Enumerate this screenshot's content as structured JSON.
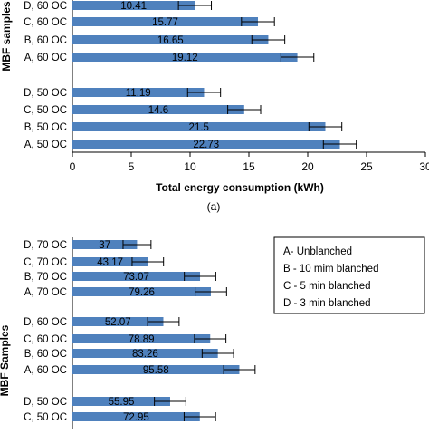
{
  "chart_data": [
    {
      "type": "bar",
      "orientation": "horizontal",
      "ylabel": "MBF samples",
      "xlabel": "Total energy consumption (kWh)",
      "caption": "(a)",
      "xlim": [
        0,
        30
      ],
      "xticks": [
        "0",
        "5",
        "10",
        "15",
        "20",
        "25",
        "30"
      ],
      "categories": [
        "D, 60 OC",
        "C, 60 OC",
        "B, 60 OC",
        "A, 60 OC",
        "D, 50 OC",
        "C, 50 OC",
        "B, 50 OC",
        "A, 50 OC"
      ],
      "values": [
        10.41,
        15.77,
        16.65,
        19.12,
        11.19,
        14.6,
        21.5,
        22.73
      ],
      "labels": [
        "10.41",
        "15.77",
        "16.65",
        "19.12",
        "11.19",
        "14.6",
        "21.5",
        "22.73"
      ],
      "errors": [
        1.4,
        1.4,
        1.4,
        1.4,
        1.4,
        1.4,
        1.4,
        1.4
      ],
      "grid": false,
      "bar_color": "#4f81bd"
    },
    {
      "type": "bar",
      "orientation": "horizontal",
      "ylabel": "MBF Samples",
      "xlim": [
        0,
        200
      ],
      "categories": [
        "D, 70 OC",
        "C, 70 OC",
        "B, 70 OC",
        "A, 70 OC",
        "D, 60 OC",
        "C, 60 OC",
        "B, 60 OC",
        "A, 60 OC",
        "D, 50 OC",
        "C, 50 OC"
      ],
      "values": [
        37,
        43.17,
        73.07,
        79.26,
        52.07,
        78.89,
        83.26,
        95.58,
        55.95,
        72.95
      ],
      "labels": [
        "37",
        "43.17",
        "73.07",
        "79.26",
        "52.07",
        "78.89",
        "83.26",
        "95.58",
        "55.95",
        "72.95"
      ],
      "errors": [
        8,
        9,
        9,
        9,
        9,
        9,
        9,
        9,
        9,
        9
      ],
      "legend": [
        "A- Unblanched",
        "B - 10 mim blanched",
        "C - 5 min blanched",
        "D - 3 min blanched"
      ],
      "legend_position": "top-right",
      "grid": false,
      "bar_color": "#4f81bd"
    }
  ]
}
